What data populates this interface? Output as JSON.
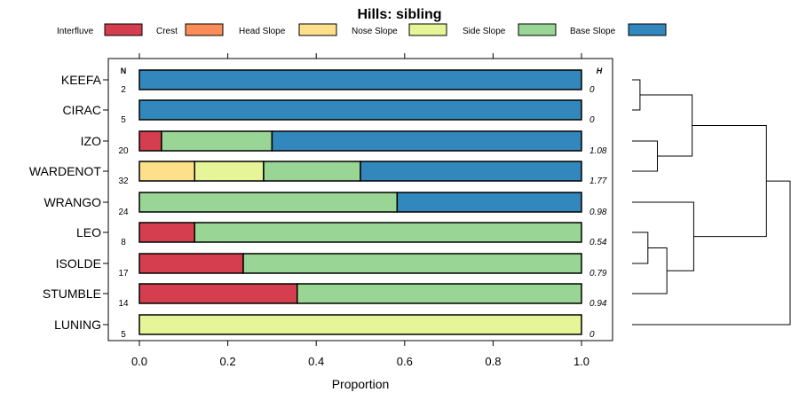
{
  "chart_data": {
    "type": "bar",
    "orientation": "horizontal",
    "stacked": true,
    "title": "Hills: sibling",
    "xlabel": "Proportion",
    "ylabel": "",
    "xlim": [
      0,
      1
    ],
    "xticks": [
      "0.0",
      "0.2",
      "0.4",
      "0.6",
      "0.8",
      "1.0"
    ],
    "xtick_values": [
      0,
      0.2,
      0.4,
      0.6,
      0.8,
      1.0
    ],
    "n_header": "N",
    "h_header": "H",
    "legend_position": "top",
    "categories": [
      "KEEFA",
      "CIRAC",
      "IZO",
      "WARDENOT",
      "WRANGO",
      "LEO",
      "ISOLDE",
      "STUMBLE",
      "LUNING"
    ],
    "n": [
      "2",
      "5",
      "20",
      "32",
      "24",
      "8",
      "17",
      "14",
      "5"
    ],
    "h": [
      "0",
      "0",
      "1.08",
      "1.77",
      "0.98",
      "0.54",
      "0.79",
      "0.94",
      "0"
    ],
    "series": [
      {
        "name": "Interfluve",
        "color": "#D53E4F",
        "values": [
          0,
          0,
          0.05,
          0,
          0,
          0.125,
          0.235,
          0.357,
          0
        ]
      },
      {
        "name": "Crest",
        "color": "#FC8D59",
        "values": [
          0,
          0,
          0,
          0,
          0,
          0,
          0,
          0,
          0
        ]
      },
      {
        "name": "Head Slope",
        "color": "#FEE08B",
        "values": [
          0,
          0,
          0,
          0.125,
          0,
          0,
          0,
          0,
          0
        ]
      },
      {
        "name": "Nose Slope",
        "color": "#E6F598",
        "values": [
          0,
          0,
          0,
          0.156,
          0,
          0,
          0,
          0,
          1.0
        ]
      },
      {
        "name": "Side Slope",
        "color": "#99D594",
        "values": [
          0,
          0,
          0.25,
          0.219,
          0.583,
          0.875,
          0.765,
          0.643,
          0
        ]
      },
      {
        "name": "Base Slope",
        "color": "#3288BD",
        "values": [
          1.0,
          1.0,
          0.7,
          0.5,
          0.417,
          0,
          0,
          0,
          0
        ]
      }
    ],
    "dendrogram": {
      "type": "hierarchical-clustering",
      "merges": [
        {
          "a": "KEEFA",
          "b": "CIRAC",
          "height": 0.05
        },
        {
          "a": "IZO",
          "b": "WARDENOT",
          "height": 0.16
        },
        {
          "a": "LEO",
          "b": "ISOLDE",
          "height": 0.1
        },
        {
          "a": "LEO+ISOLDE",
          "b": "STUMBLE",
          "height": 0.22
        },
        {
          "a": "WRANGO",
          "b": "LEO+ISOLDE+STUMBLE",
          "height": 0.39
        },
        {
          "a": "KEEFA+CIRAC",
          "b": "IZO+WARDENOT",
          "height": 0.38
        },
        {
          "a": "KEEFA+CIRAC+IZO+WARDENOT",
          "b": "WRANGO+LEO+ISOLDE+STUMBLE",
          "height": 0.85
        },
        {
          "a": "ALL-BUT-LUNING",
          "b": "LUNING",
          "height": 1.0
        }
      ]
    }
  }
}
